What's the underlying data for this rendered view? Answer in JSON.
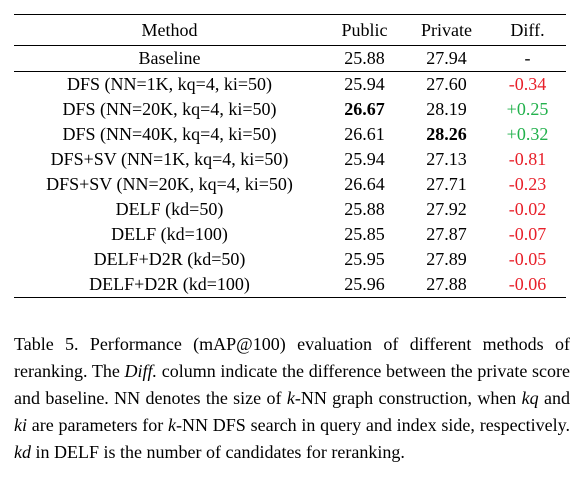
{
  "table": {
    "headers": [
      "Method",
      "Public",
      "Private",
      "Diff."
    ],
    "rows": [
      {
        "method": "Baseline",
        "public": "25.88",
        "private": "27.94",
        "diff": "-"
      },
      {
        "method": "DFS (NN=1K, kq=4, ki=50)",
        "public": "25.94",
        "private": "27.60",
        "diff": "-0.34"
      },
      {
        "method": "DFS (NN=20K, kq=4, ki=50)",
        "public": "26.67",
        "private": "28.19",
        "diff": "+0.25"
      },
      {
        "method": "DFS (NN=40K, kq=4, ki=50)",
        "public": "26.61",
        "private": "28.26",
        "diff": "+0.32"
      },
      {
        "method": "DFS+SV (NN=1K, kq=4, ki=50)",
        "public": "25.94",
        "private": "27.13",
        "diff": "-0.81"
      },
      {
        "method": "DFS+SV (NN=20K, kq=4, ki=50)",
        "public": "26.64",
        "private": "27.71",
        "diff": "-0.23"
      },
      {
        "method": "DELF (kd=50)",
        "public": "25.88",
        "private": "27.92",
        "diff": "-0.02"
      },
      {
        "method": "DELF (kd=100)",
        "public": "25.85",
        "private": "27.87",
        "diff": "-0.07"
      },
      {
        "method": "DELF+D2R (kd=50)",
        "public": "25.95",
        "private": "27.89",
        "diff": "-0.05"
      },
      {
        "method": "DELF+D2R (kd=100)",
        "public": "25.96",
        "private": "27.88",
        "diff": "-0.06"
      }
    ]
  },
  "colors": {
    "negative": "#e8202a",
    "positive": "#22b14c"
  },
  "caption": {
    "label": "Table 5.",
    "t1": " Performance (mAP@100) evaluation of different methods of reranking. The ",
    "t2": "Diff.",
    "t3": " column indicate the difference between the private score and baseline. NN denotes the size of ",
    "t4": "k",
    "t5": "-NN graph construction, when ",
    "t6": "kq",
    "t7": " and ",
    "t8": "ki",
    "t9": " are parameters for ",
    "t10": "k",
    "t11": "-NN DFS search in query and index side, respectively. ",
    "t12": "kd",
    "t13": " in DELF is the number of candidates for reranking."
  }
}
